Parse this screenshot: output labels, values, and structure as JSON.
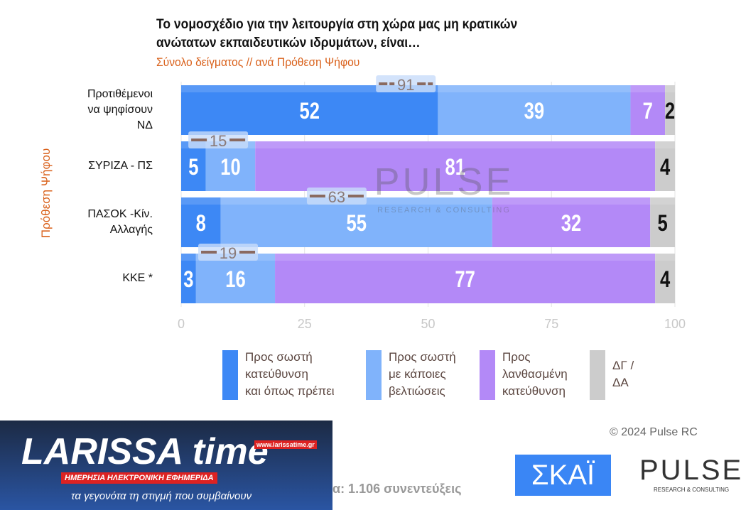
{
  "title": "Το νομοσχέδιο για την λειτουργία στη χώρα μας μη κρατικών ανώτατων εκπαιδευτικών ιδρυμάτων, είναι…",
  "title_lines": [
    "Το νομοσχέδιο για την λειτουργία στη χώρα μας μη κρατικών",
    "ανώτατων εκπαιδευτικών ιδρυμάτων, είναι…"
  ],
  "subtitle": "Σύνολο δείγματος // ανά Πρόθεση Ψήφου",
  "footer": {
    "copyright": "© 2024 Pulse RC",
    "sample": "α:  1.106 συνεντεύξεις",
    "watermark": "PULSE",
    "watermark_sub": "RESEARCH & CONSULTING"
  },
  "logos": {
    "larissa": "LARISSA time",
    "larissa_url": "www.larissatime.gr",
    "larissa_tag": "ΗΜΕΡΗΣΙΑ ΗΛΕΚΤΡΟΝΙΚΗ ΕΦΗΜΕΡΙΔΑ",
    "larissa_slogan": "τα γεγονότα τη στιγμή που συμβαίνουν",
    "skai": "ΣΚΑΪ",
    "pulse": "PULSE",
    "pulse_sub": "RESEARCH & CONSULTING"
  },
  "chart_data": {
    "type": "bar",
    "orientation": "horizontal",
    "stacked": true,
    "ylabel": "Πρόθεση Ψήφου",
    "categories": [
      "Προτιθέμενοι να ψηφίσουν ΝΔ",
      "ΣΥΡΙΖΑ - ΠΣ",
      "ΠΑΣΟΚ -Κίν. Αλλαγής",
      "ΚΚΕ *"
    ],
    "category_lines": [
      [
        "Προτιθέμενοι",
        "να ψηφίσουν",
        "ΝΔ"
      ],
      [
        "ΣΥΡΙΖΑ - ΠΣ"
      ],
      [
        "ΠΑΣΟΚ -Κίν.",
        "Αλλαγής"
      ],
      [
        "ΚΚΕ *"
      ]
    ],
    "xlim": [
      0,
      100
    ],
    "xticks": [
      0,
      25,
      50,
      75,
      100
    ],
    "grid": true,
    "legend_position": "bottom",
    "series": [
      {
        "name": "Προς σωστή κατεύθυνση και όπως πρέπει",
        "lines": [
          "Προς σωστή",
          "κατεύθυνση",
          "και όπως πρέπει"
        ],
        "color": "#3d88f5",
        "values": [
          52,
          5,
          8,
          3
        ]
      },
      {
        "name": "Προς σωστή με κάποιες βελτιώσεις",
        "lines": [
          "Προς σωστή",
          "με κάποιες",
          "βελτιώσεις"
        ],
        "color": "#80b3fb",
        "values": [
          39,
          10,
          55,
          16
        ]
      },
      {
        "name": "Προς λανθασμένη κατεύθυνση",
        "lines": [
          "Προς",
          "λανθασμένη",
          "κατεύθυνση"
        ],
        "color": "#b389f7",
        "values": [
          7,
          81,
          32,
          77
        ]
      },
      {
        "name": "ΔΓ / ΔΑ",
        "lines": [
          "ΔΓ /",
          "ΔΑ"
        ],
        "color": "#cccccc",
        "values": [
          2,
          4,
          5,
          4
        ]
      }
    ],
    "totals_positive": [
      91,
      15,
      63,
      19
    ]
  }
}
